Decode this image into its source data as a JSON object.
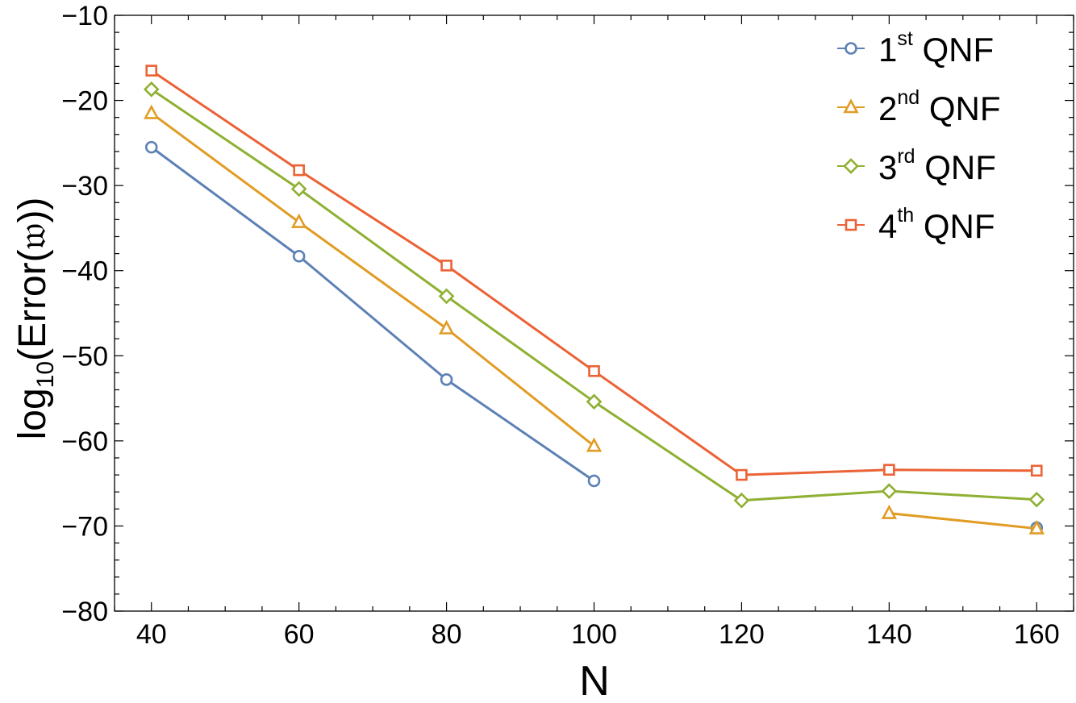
{
  "chart_data": {
    "type": "line",
    "xlabel": "N",
    "ylabel_main": "log",
    "ylabel_sub": "10",
    "ylabel_rest": "(Error(𝔴))",
    "xlim": [
      35,
      165
    ],
    "ylim": [
      -80,
      -10
    ],
    "xticks": [
      40,
      60,
      80,
      100,
      120,
      140,
      160
    ],
    "xtick_labels": [
      "40",
      "60",
      "80",
      "100",
      "120",
      "140",
      "160"
    ],
    "yticks": [
      -80,
      -70,
      -60,
      -50,
      -40,
      -30,
      -20,
      -10
    ],
    "ytick_labels": [
      "−80",
      "−70",
      "−60",
      "−50",
      "−40",
      "−30",
      "−20",
      "−10"
    ],
    "grid": false,
    "legend_position": "top-right",
    "series": [
      {
        "legend_base": "1",
        "legend_sup": "st",
        "legend_rest": " QNF",
        "color": "#5e81b5",
        "marker": "circle",
        "points": [
          [
            40,
            -25.5
          ],
          [
            60,
            -38.3
          ],
          [
            80,
            -52.8
          ],
          [
            100,
            -64.7
          ],
          [
            160,
            -70.2
          ]
        ],
        "segments": [
          [
            0,
            3
          ]
        ]
      },
      {
        "legend_base": "2",
        "legend_sup": "nd",
        "legend_rest": " QNF",
        "color": "#e19c24",
        "marker": "triangle",
        "points": [
          [
            40,
            -21.5
          ],
          [
            60,
            -34.3
          ],
          [
            80,
            -46.8
          ],
          [
            100,
            -60.6
          ],
          [
            140,
            -68.5
          ],
          [
            160,
            -70.3
          ]
        ],
        "segments": [
          [
            0,
            3
          ],
          [
            4,
            5
          ]
        ]
      },
      {
        "legend_base": "3",
        "legend_sup": "rd",
        "legend_rest": " QNF",
        "color": "#8fb032",
        "marker": "diamond",
        "points": [
          [
            40,
            -18.7
          ],
          [
            60,
            -30.4
          ],
          [
            80,
            -43.0
          ],
          [
            100,
            -55.4
          ],
          [
            120,
            -67.0
          ],
          [
            140,
            -65.9
          ],
          [
            160,
            -66.9
          ]
        ],
        "segments": [
          [
            0,
            6
          ]
        ]
      },
      {
        "legend_base": "4",
        "legend_sup": "th",
        "legend_rest": " QNF",
        "color": "#eb6235",
        "marker": "square",
        "points": [
          [
            40,
            -16.5
          ],
          [
            60,
            -28.2
          ],
          [
            80,
            -39.4
          ],
          [
            100,
            -51.8
          ],
          [
            120,
            -64.0
          ],
          [
            140,
            -63.4
          ],
          [
            160,
            -63.5
          ]
        ],
        "segments": [
          [
            0,
            6
          ]
        ]
      }
    ]
  }
}
